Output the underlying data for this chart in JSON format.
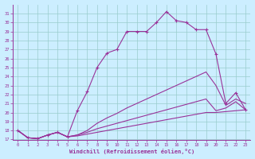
{
  "xlabel": "Windchill (Refroidissement éolien,°C)",
  "background_color": "#cceeff",
  "grid_color": "#99cccc",
  "line_color": "#993399",
  "xlim": [
    -0.5,
    23.5
  ],
  "ylim": [
    17,
    32
  ],
  "xticks": [
    0,
    1,
    2,
    3,
    4,
    5,
    6,
    7,
    8,
    9,
    10,
    11,
    12,
    13,
    14,
    15,
    16,
    17,
    18,
    19,
    20,
    21,
    22,
    23
  ],
  "yticks": [
    17,
    18,
    19,
    20,
    21,
    22,
    23,
    24,
    25,
    26,
    27,
    28,
    29,
    30,
    31
  ],
  "curve1_x": [
    0,
    1,
    2,
    3,
    4,
    5,
    6,
    7,
    8,
    9,
    10,
    11,
    12,
    13,
    14,
    15,
    16,
    17,
    18,
    19,
    20,
    21,
    22,
    23
  ],
  "curve1_y": [
    18,
    17.2,
    17.1,
    17.5,
    17.8,
    17.3,
    20.2,
    22.3,
    25.0,
    26.6,
    27.0,
    29.0,
    29.0,
    29.0,
    30.0,
    31.2,
    30.2,
    30.0,
    29.2,
    29.2,
    26.5,
    21.0,
    22.2,
    20.3
  ],
  "curve2_x": [
    0,
    1,
    2,
    3,
    4,
    5,
    6,
    7,
    8,
    9,
    10,
    11,
    12,
    13,
    14,
    15,
    16,
    17,
    18,
    19,
    20,
    21,
    22,
    23
  ],
  "curve2_y": [
    18,
    17.2,
    17.1,
    17.5,
    17.8,
    17.3,
    17.5,
    18.0,
    18.8,
    19.4,
    19.9,
    20.5,
    21.0,
    21.5,
    22.0,
    22.5,
    23.0,
    23.5,
    24.0,
    24.5,
    23.0,
    20.8,
    21.5,
    21.0
  ],
  "curve3_x": [
    0,
    1,
    2,
    3,
    4,
    5,
    6,
    7,
    8,
    9,
    10,
    11,
    12,
    13,
    14,
    15,
    16,
    17,
    18,
    19,
    20,
    21,
    22,
    23
  ],
  "curve3_y": [
    18,
    17.2,
    17.1,
    17.5,
    17.8,
    17.3,
    17.5,
    17.8,
    18.2,
    18.5,
    18.8,
    19.1,
    19.4,
    19.7,
    20.0,
    20.3,
    20.6,
    20.9,
    21.2,
    21.5,
    20.2,
    20.5,
    21.2,
    20.3
  ],
  "curve4_x": [
    0,
    1,
    2,
    3,
    4,
    5,
    6,
    7,
    8,
    9,
    10,
    11,
    12,
    13,
    14,
    15,
    16,
    17,
    18,
    19,
    20,
    21,
    22,
    23
  ],
  "curve4_y": [
    18,
    17.2,
    17.1,
    17.5,
    17.8,
    17.3,
    17.4,
    17.6,
    17.8,
    18.0,
    18.2,
    18.4,
    18.6,
    18.8,
    19.0,
    19.2,
    19.4,
    19.6,
    19.8,
    20.0,
    20.0,
    20.1,
    20.2,
    20.3
  ]
}
